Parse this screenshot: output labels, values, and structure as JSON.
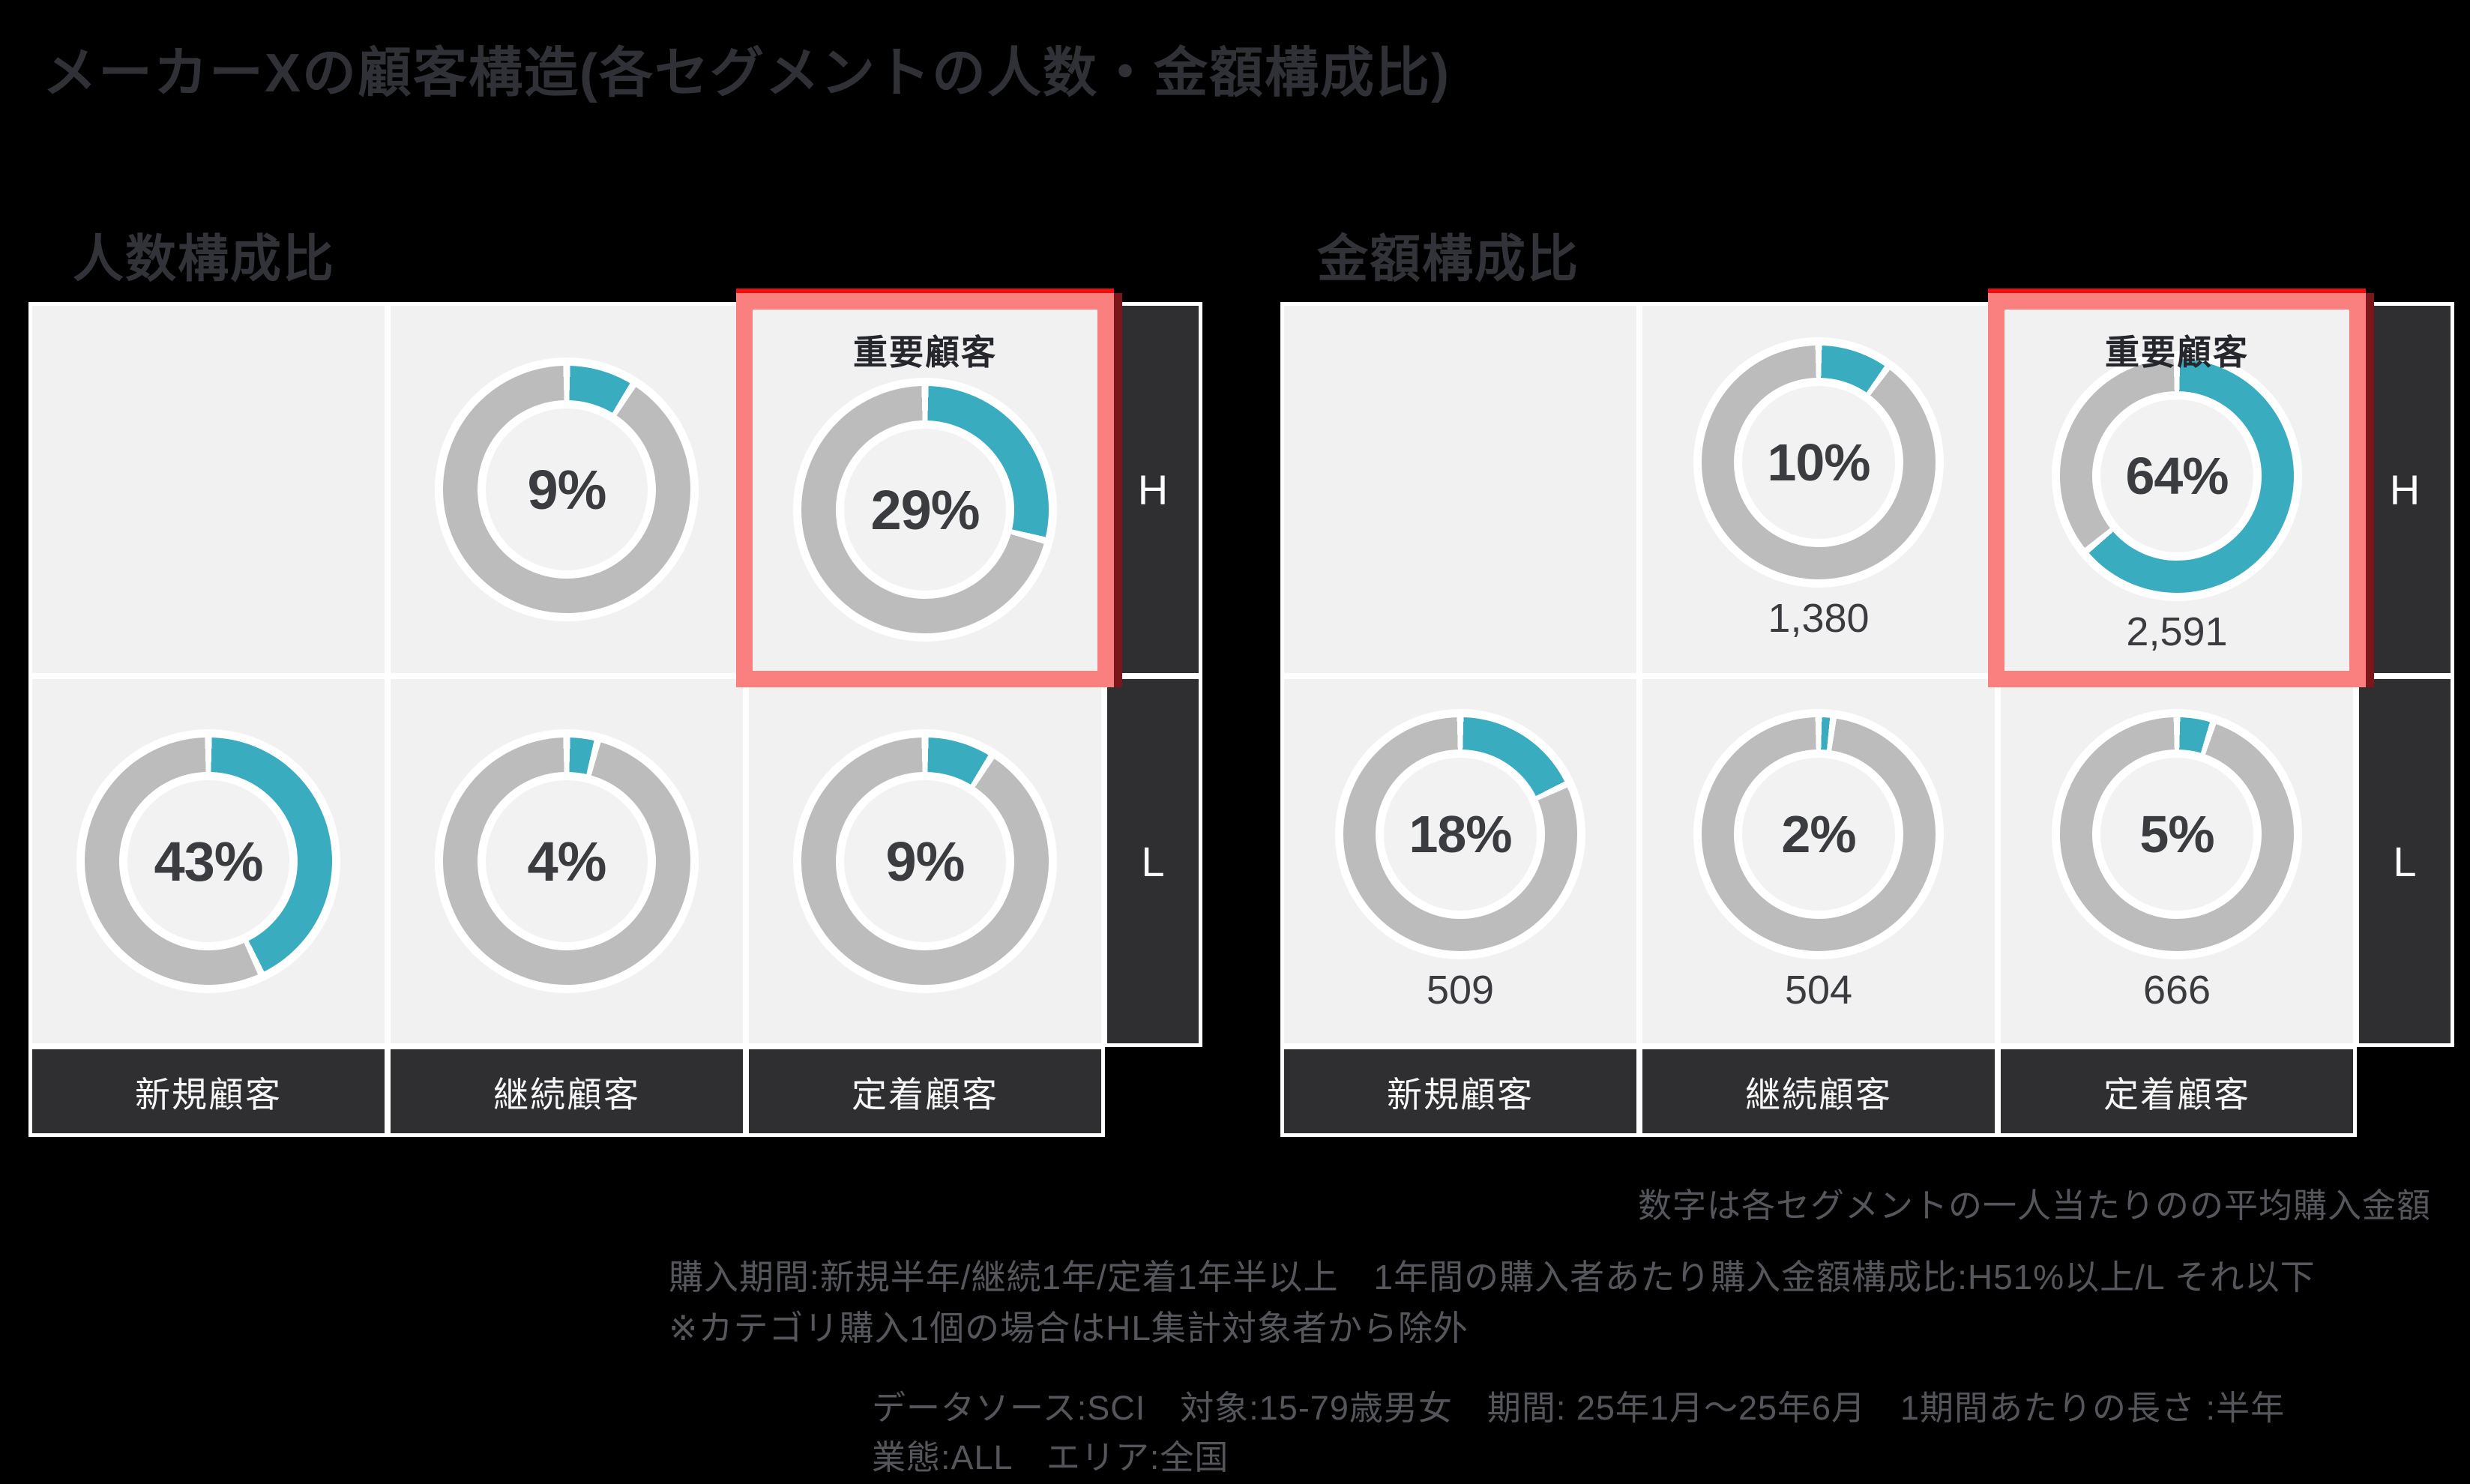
{
  "page_title": "メーカーXの顧客構造(各セグメントの人数・金額構成比)",
  "colors": {
    "accent_teal": "#3aacc0",
    "donut_gray": "#bcbcbc",
    "highlight_red": "#fa8080",
    "panel_bg": "#f1f1f2",
    "dark_cell": "#2f2f31",
    "page_bg": "#000000"
  },
  "panels": [
    {
      "header": "人数構成比",
      "h_label": "H",
      "l_label": "L",
      "col_labels": [
        "新規顧客",
        "継続顧客",
        "定着顧客"
      ],
      "cells": [
        {},
        {
          "pct": 9,
          "pct_label": "9%"
        },
        {
          "pct": 29,
          "pct_label": "29%",
          "highlight_label": "重要顧客"
        },
        {
          "pct": 43,
          "pct_label": "43%"
        },
        {
          "pct": 4,
          "pct_label": "4%"
        },
        {
          "pct": 9,
          "pct_label": "9%"
        }
      ]
    },
    {
      "header": "金額構成比",
      "h_label": "H",
      "l_label": "L",
      "col_labels": [
        "新規顧客",
        "継続顧客",
        "定着顧客"
      ],
      "cells": [
        {},
        {
          "pct": 10,
          "pct_label": "10%",
          "value_label": "1,380"
        },
        {
          "pct": 64,
          "pct_label": "64%",
          "value_label": "2,591",
          "highlight_label": "重要顧客"
        },
        {
          "pct": 18,
          "pct_label": "18%",
          "value_label": "509"
        },
        {
          "pct": 2,
          "pct_label": "2%",
          "value_label": "504"
        },
        {
          "pct": 5,
          "pct_label": "5%",
          "value_label": "666"
        }
      ]
    }
  ],
  "notes": {
    "amount_note": "数字は各セグメントの一人当たりのの平均購入金額",
    "definition_line1": "購入期間:新規半年/継続1年/定着1年半以上　1年間の購入者あたり購入金額構成比:H51%以上/L それ以下",
    "definition_line2": "※カテゴリ購入1個の場合はHL集計対象者から除外",
    "source_line1": "データソース:SCI　対象:15-79歳男女　期間: 25年1月〜25年6月　1期間あたりの長さ :半年",
    "source_line2": "業態:ALL　エリア:全国"
  },
  "chart_data": {
    "type": "pie",
    "subtype": "donut_grid",
    "title": "メーカーXの顧客構造(各セグメントの人数・金額構成比)",
    "panels": [
      {
        "title": "人数構成比",
        "columns": [
          "新規顧客",
          "継続顧客",
          "定着顧客"
        ],
        "rows": [
          "H",
          "L"
        ],
        "values_pct": {
          "H": [
            null,
            9,
            29
          ],
          "L": [
            43,
            4,
            9
          ]
        },
        "highlight": {
          "row": "H",
          "column": "定着顧客",
          "label": "重要顧客",
          "value_pct": 29
        }
      },
      {
        "title": "金額構成比",
        "columns": [
          "新規顧客",
          "継続顧客",
          "定着顧客"
        ],
        "rows": [
          "H",
          "L"
        ],
        "values_pct": {
          "H": [
            null,
            10,
            64
          ],
          "L": [
            18,
            2,
            5
          ]
        },
        "avg_amount_per_person": {
          "H": [
            null,
            1380,
            2591
          ],
          "L": [
            509,
            504,
            666
          ]
        },
        "highlight": {
          "row": "H",
          "column": "定着顧客",
          "label": "重要顧客",
          "value_pct": 64
        }
      }
    ],
    "legend_note": "teal segment = share, gray = remainder, clockwise from top",
    "accent_color": "#3aacc0",
    "rest_color": "#bcbcbc"
  }
}
